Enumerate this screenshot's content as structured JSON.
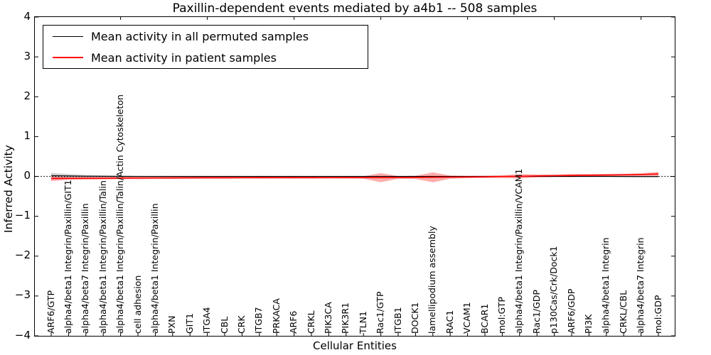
{
  "title": "Paxillin-dependent events mediated by a4b1 -- 508 samples",
  "colors": {
    "permuted_line": "#000000",
    "patient_line": "#ff0000",
    "permuted_band": "#888888",
    "patient_band": "#ff0000",
    "axis": "#000000",
    "background": "#ffffff"
  },
  "chart_data": {
    "type": "line",
    "title": "Paxillin-dependent events mediated by a4b1 -- 508 samples",
    "xlabel": "Cellular Entities",
    "ylabel": "Inferred Activity",
    "ylim": [
      -4,
      4
    ],
    "y_ticks": [
      4,
      3,
      2,
      1,
      0,
      -1,
      -2,
      -3,
      -4
    ],
    "grid": false,
    "legend_position": "upper left",
    "zero_line_style": "dotted",
    "categories": [
      "ARF6/GTP",
      "alpha4/beta1 Integrin/Paxillin/GIT1",
      "alpha4/beta7 Integrin/Paxillin",
      "alpha4/beta1 Integrin/Paxillin/Talin",
      "alpha4/beta1 Integrin/Paxillin/Talin/Actin Cytoskeleton",
      "cell adhesion",
      "alpha4/beta1 Integrin/Paxillin",
      "PXN",
      "GIT1",
      "ITGA4",
      "CBL",
      "CRK",
      "ITGB7",
      "PRKACA",
      "ARF6",
      "CRKL",
      "PIK3CA",
      "PIK3R1",
      "TLN1",
      "Rac1/GTP",
      "ITGB1",
      "DOCK1",
      "lamellipodium assembly",
      "RAC1",
      "VCAM1",
      "BCAR1",
      "mol:GTP",
      "alpha4/beta1 Integrin/Paxillin/VCAM1",
      "Rac1/GDP",
      "p130Cas/Crk/Dock1",
      "ARF6/GDP",
      "PI3K",
      "alpha4/beta1 Integrin",
      "CRKL/CBL",
      "alpha4/beta7 Integrin",
      "mol:GDP"
    ],
    "series": [
      {
        "name": "Mean activity in all permuted samples",
        "color": "#000000",
        "line_width": 1.1,
        "band_color": "#888888",
        "band_opacity": 0.4,
        "values": [
          0.02,
          0.012,
          0.006,
          0.003,
          0.001,
          0,
          0,
          0,
          0,
          0,
          0,
          0,
          0,
          0,
          0,
          0,
          0,
          0,
          0,
          0,
          0,
          0,
          0,
          0,
          0,
          0,
          0,
          0,
          0,
          0,
          0,
          0,
          0,
          -0.002,
          -0.003,
          -0.004
        ],
        "band": [
          0.07,
          0.045,
          0.032,
          0.024,
          0.018,
          0.015,
          0.015,
          0.015,
          0.015,
          0.015,
          0.015,
          0.015,
          0.015,
          0.015,
          0.015,
          0.015,
          0.015,
          0.015,
          0.015,
          0.015,
          0.015,
          0.015,
          0.015,
          0.015,
          0.015,
          0.015,
          0.015,
          0.015,
          0.015,
          0.015,
          0.015,
          0.015,
          0.015,
          0.015,
          0.015,
          0.015
        ]
      },
      {
        "name": "Mean activity in patient samples",
        "color": "#ff0000",
        "line_width": 1.6,
        "band_color": "#ff0000",
        "band_opacity": 0.32,
        "values": [
          -0.055,
          -0.05,
          -0.048,
          -0.045,
          -0.042,
          -0.04,
          -0.038,
          -0.036,
          -0.034,
          -0.033,
          -0.032,
          -0.031,
          -0.03,
          -0.03,
          -0.03,
          -0.03,
          -0.029,
          -0.028,
          -0.028,
          -0.03,
          -0.026,
          -0.024,
          -0.022,
          -0.018,
          -0.014,
          -0.01,
          -0.004,
          0.004,
          0.012,
          0.018,
          0.024,
          0.03,
          0.035,
          0.04,
          0.048,
          0.062
        ],
        "band": [
          0.06,
          0.035,
          0.03,
          0.03,
          0.028,
          0.028,
          0.027,
          0.026,
          0.026,
          0.025,
          0.025,
          0.025,
          0.025,
          0.025,
          0.025,
          0.025,
          0.025,
          0.026,
          0.03,
          0.115,
          0.034,
          0.04,
          0.125,
          0.04,
          0.028,
          0.027,
          0.034,
          0.055,
          0.036,
          0.032,
          0.038,
          0.03,
          0.028,
          0.028,
          0.032,
          0.05
        ]
      }
    ]
  }
}
